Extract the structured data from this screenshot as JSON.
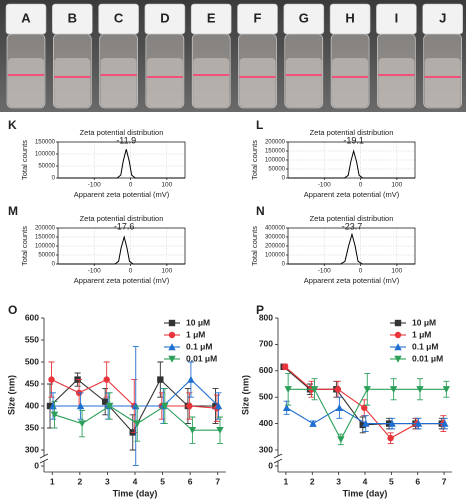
{
  "photo": {
    "labels": [
      "A",
      "B",
      "C",
      "D",
      "E",
      "F",
      "G",
      "H",
      "I",
      "J"
    ]
  },
  "chart_data": [
    {
      "type": "zeta",
      "panel": "K",
      "title": "Zeta potential distribution",
      "annotation": "-11.9",
      "x_label": "Apparent zeta potential (mV)",
      "y_label": "Total counts",
      "x": [
        -200,
        -37,
        -27,
        -20,
        -11.9,
        -4,
        3,
        13,
        150
      ],
      "values": [
        0,
        0,
        12000,
        72000,
        120000,
        72000,
        12000,
        0,
        0
      ],
      "color": "#000000",
      "xlim": [
        -200,
        150
      ],
      "xticks": [
        -100,
        0,
        100
      ],
      "ylim": [
        0,
        150000
      ],
      "yticks": [
        0,
        50000,
        100000,
        150000
      ],
      "grid": true
    },
    {
      "type": "zeta",
      "panel": "L",
      "title": "Zeta potential distribution",
      "annotation": "-19.1",
      "x_label": "Apparent zeta potential (mV)",
      "y_label": "Total counts",
      "x": [
        -200,
        -44,
        -34,
        -27,
        -19.1,
        -11,
        -4,
        6,
        150
      ],
      "values": [
        0,
        0,
        15000,
        90000,
        150000,
        90000,
        15000,
        0,
        0
      ],
      "color": "#000000",
      "xlim": [
        -200,
        150
      ],
      "xticks": [
        -100,
        0,
        100
      ],
      "ylim": [
        0,
        200000
      ],
      "yticks": [
        0,
        50000,
        100000,
        150000,
        200000
      ],
      "grid": true
    },
    {
      "type": "zeta",
      "panel": "M",
      "title": "Zeta potential distribution",
      "annotation": "-17.6",
      "x_label": "Apparent zeta potential (mV)",
      "y_label": "Total counts",
      "x": [
        -200,
        -43,
        -33,
        -26,
        -17.6,
        -10,
        -3,
        7,
        150
      ],
      "values": [
        0,
        0,
        15000,
        90000,
        150000,
        90000,
        15000,
        0,
        0
      ],
      "color": "#000000",
      "xlim": [
        -200,
        150
      ],
      "xticks": [
        -100,
        0,
        100
      ],
      "ylim": [
        0,
        200000
      ],
      "yticks": [
        0,
        50000,
        100000,
        150000,
        200000
      ],
      "grid": true
    },
    {
      "type": "zeta",
      "panel": "N",
      "title": "Zeta potential distribution",
      "annotation": "-23.7",
      "x_label": "Apparent zeta potential (mV)",
      "y_label": "Total counts",
      "x": [
        -200,
        -55,
        -43,
        -33,
        -23.7,
        -15,
        -7,
        5,
        150
      ],
      "values": [
        0,
        0,
        30000,
        200000,
        330000,
        200000,
        30000,
        0,
        0
      ],
      "color": "#000000",
      "xlim": [
        -200,
        150
      ],
      "xticks": [
        -100,
        0,
        100
      ],
      "ylim": [
        0,
        400000
      ],
      "yticks": [
        0,
        100000,
        200000,
        300000,
        400000
      ],
      "grid": true
    },
    {
      "type": "errorline",
      "panel": "O",
      "x_label": "Time (day)",
      "y_label": "Size (nm)",
      "x": [
        1,
        2,
        3,
        4,
        5,
        6,
        7
      ],
      "xlim": [
        0.7,
        7.3
      ],
      "xticks": [
        1,
        2,
        3,
        4,
        5,
        6,
        7
      ],
      "ylim": [
        0,
        600
      ],
      "axis_break": [
        0,
        300
      ],
      "yticks": [
        0,
        300,
        350,
        400,
        450,
        500,
        550,
        600
      ],
      "legend": "top-right",
      "series": [
        {
          "name": "10 μM",
          "color": "#333333",
          "marker": "square",
          "values": [
            400,
            460,
            410,
            340,
            460,
            400,
            400
          ],
          "errors": [
            50,
            15,
            30,
            40,
            40,
            40,
            40
          ]
        },
        {
          "name": "1 μM",
          "color": "#e8343a",
          "marker": "circle",
          "values": [
            460,
            430,
            460,
            400,
            400,
            400,
            395
          ],
          "errors": [
            40,
            30,
            40,
            60,
            30,
            30,
            30
          ]
        },
        {
          "name": "0.1 μM",
          "color": "#1f6fd1",
          "marker": "triangle",
          "values": [
            400,
            400,
            400,
            400,
            400,
            460,
            400
          ],
          "errors": [
            30,
            30,
            30,
            135,
            40,
            40,
            30
          ]
        },
        {
          "name": "0.01 μM",
          "color": "#2ca05a",
          "marker": "triangle-down",
          "values": [
            380,
            360,
            400,
            360,
            400,
            345,
            345
          ],
          "errors": [
            30,
            30,
            30,
            40,
            40,
            30,
            30
          ]
        }
      ]
    },
    {
      "type": "errorline",
      "panel": "P",
      "x_label": "Time (day)",
      "y_label": "Size (nm)",
      "x": [
        1,
        2,
        3,
        4,
        5,
        6,
        7
      ],
      "xlim": [
        0.7,
        7.3
      ],
      "xticks": [
        1,
        2,
        3,
        4,
        5,
        6,
        7
      ],
      "ylim": [
        0,
        800
      ],
      "axis_break": [
        0,
        300
      ],
      "yticks": [
        0,
        300,
        400,
        500,
        600,
        700,
        800
      ],
      "legend": "top-right",
      "series": [
        {
          "name": "10 μM",
          "color": "#333333",
          "marker": "square",
          "values": [
            615,
            530,
            530,
            395,
            400,
            400,
            400
          ],
          "errors": [
            10,
            20,
            30,
            30,
            20,
            20,
            20
          ]
        },
        {
          "name": "1 μM",
          "color": "#e8343a",
          "marker": "circle",
          "values": [
            615,
            530,
            530,
            460,
            345,
            400,
            400
          ],
          "errors": [
            10,
            30,
            30,
            30,
            20,
            20,
            30
          ]
        },
        {
          "name": "0.1 μM",
          "color": "#1f6fd1",
          "marker": "triangle",
          "values": [
            460,
            400,
            460,
            400,
            400,
            400,
            400
          ],
          "errors": [
            25,
            10,
            40,
            30,
            20,
            20,
            20
          ]
        },
        {
          "name": "0.01 μM",
          "color": "#2ca05a",
          "marker": "triangle-down",
          "values": [
            530,
            530,
            340,
            530,
            530,
            530,
            530
          ],
          "errors": [
            60,
            40,
            20,
            60,
            40,
            40,
            30
          ]
        }
      ]
    }
  ]
}
